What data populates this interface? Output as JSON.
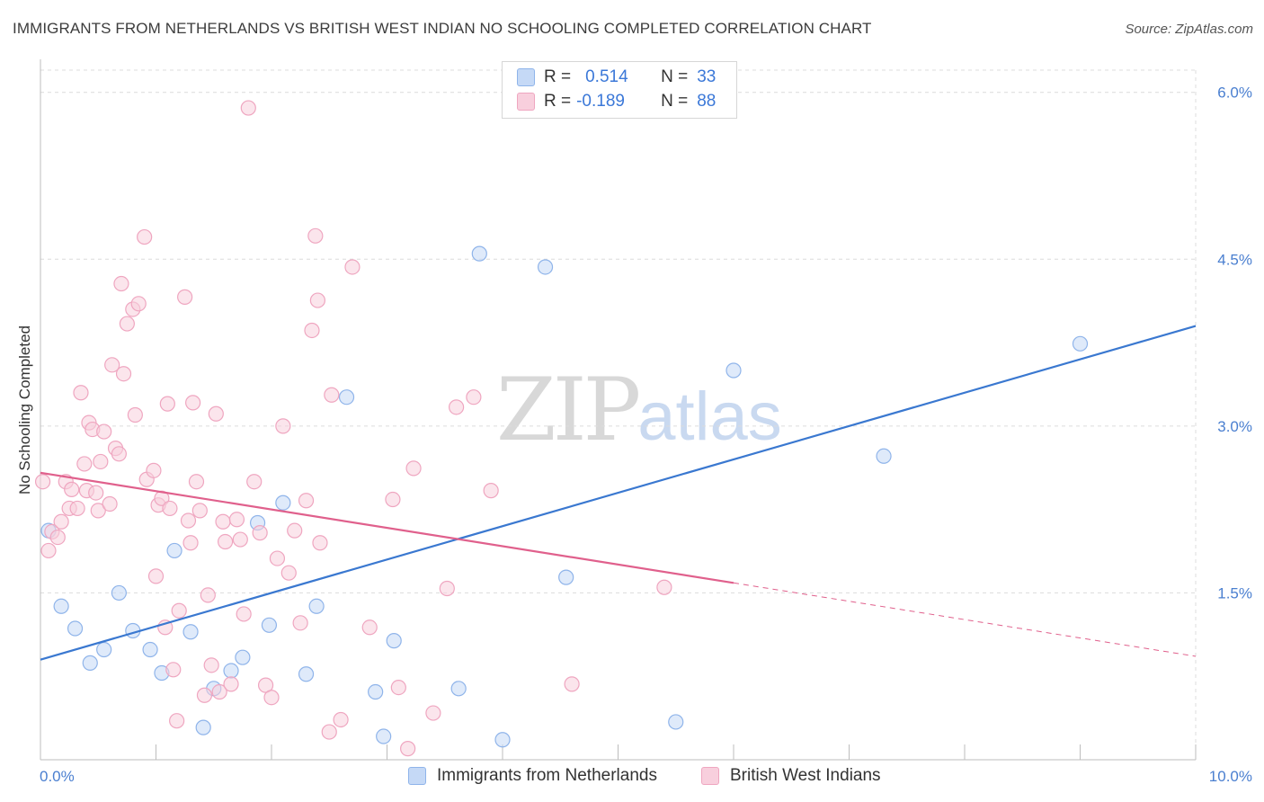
{
  "header": {
    "title": "IMMIGRANTS FROM NETHERLANDS VS BRITISH WEST INDIAN NO SCHOOLING COMPLETED CORRELATION CHART",
    "source": "Source: ZipAtlas.com"
  },
  "legend_top": {
    "rows": [
      {
        "r_label": "R =",
        "r_value": "0.514",
        "n_label": "N =",
        "n_value": "33"
      },
      {
        "r_label": "R =",
        "r_value": "-0.189",
        "n_label": "N =",
        "n_value": "88"
      }
    ]
  },
  "watermark": {
    "zip": "ZIP",
    "atlas": "atlas"
  },
  "chart_data": {
    "type": "scatter",
    "title": "IMMIGRANTS FROM NETHERLANDS VS BRITISH WEST INDIAN NO SCHOOLING COMPLETED CORRELATION CHART",
    "ylabel": "No Schooling Completed",
    "xlabel": "",
    "xlim": [
      0,
      10
    ],
    "ylim": [
      0,
      6.2
    ],
    "x_tick_labels": {
      "min": "0.0%",
      "max": "10.0%"
    },
    "y_ticks": [
      {
        "value": 1.5,
        "label": "1.5%"
      },
      {
        "value": 3.0,
        "label": "3.0%"
      },
      {
        "value": 4.5,
        "label": "4.5%"
      },
      {
        "value": 6.0,
        "label": "6.0%"
      }
    ],
    "grid": true,
    "legend_position": "bottom",
    "series": [
      {
        "name": "Immigrants from Netherlands",
        "color": "#8fb4ea",
        "fill": "#c5d9f6",
        "line_color": "#3a78d0",
        "trend": {
          "x0": 0.0,
          "y0": 0.9,
          "x1": 10.0,
          "y1": 3.9,
          "dashed_from": null
        },
        "points": [
          [
            0.07,
            2.06
          ],
          [
            0.18,
            1.38
          ],
          [
            0.3,
            1.18
          ],
          [
            0.43,
            0.87
          ],
          [
            0.55,
            0.99
          ],
          [
            0.68,
            1.5
          ],
          [
            0.8,
            1.16
          ],
          [
            0.95,
            0.99
          ],
          [
            1.05,
            0.78
          ],
          [
            1.16,
            1.88
          ],
          [
            1.3,
            1.15
          ],
          [
            1.41,
            0.29
          ],
          [
            1.5,
            0.64
          ],
          [
            1.65,
            0.8
          ],
          [
            1.75,
            0.92
          ],
          [
            1.88,
            2.13
          ],
          [
            1.98,
            1.21
          ],
          [
            2.1,
            2.31
          ],
          [
            2.3,
            0.77
          ],
          [
            2.39,
            1.38
          ],
          [
            2.65,
            3.26
          ],
          [
            2.9,
            0.61
          ],
          [
            2.97,
            0.21
          ],
          [
            3.06,
            1.07
          ],
          [
            3.62,
            0.64
          ],
          [
            3.8,
            4.55
          ],
          [
            4.0,
            0.18
          ],
          [
            4.37,
            4.43
          ],
          [
            4.55,
            1.64
          ],
          [
            5.5,
            0.34
          ],
          [
            6.0,
            3.5
          ],
          [
            7.3,
            2.73
          ],
          [
            9.0,
            3.74
          ]
        ]
      },
      {
        "name": "British West Indians",
        "color": "#efa6c0",
        "fill": "#f8cfdd",
        "line_color": "#e0608c",
        "trend": {
          "x0": 0.0,
          "y0": 2.58,
          "x1": 10.0,
          "y1": 0.93,
          "dashed_from": 6.0
        },
        "points": [
          [
            0.02,
            2.5
          ],
          [
            0.07,
            1.88
          ],
          [
            0.1,
            2.05
          ],
          [
            0.15,
            2.0
          ],
          [
            0.18,
            2.14
          ],
          [
            0.22,
            2.5
          ],
          [
            0.25,
            2.26
          ],
          [
            0.27,
            2.43
          ],
          [
            0.32,
            2.26
          ],
          [
            0.35,
            3.3
          ],
          [
            0.38,
            2.66
          ],
          [
            0.4,
            2.42
          ],
          [
            0.42,
            3.03
          ],
          [
            0.45,
            2.97
          ],
          [
            0.48,
            2.4
          ],
          [
            0.5,
            2.24
          ],
          [
            0.52,
            2.68
          ],
          [
            0.55,
            2.95
          ],
          [
            0.6,
            2.3
          ],
          [
            0.62,
            3.55
          ],
          [
            0.65,
            2.8
          ],
          [
            0.68,
            2.75
          ],
          [
            0.7,
            4.28
          ],
          [
            0.72,
            3.47
          ],
          [
            0.75,
            3.92
          ],
          [
            0.8,
            4.05
          ],
          [
            0.82,
            3.1
          ],
          [
            0.85,
            4.1
          ],
          [
            0.9,
            4.7
          ],
          [
            0.92,
            2.52
          ],
          [
            0.98,
            2.6
          ],
          [
            1.0,
            1.65
          ],
          [
            1.02,
            2.29
          ],
          [
            1.05,
            2.35
          ],
          [
            1.08,
            1.19
          ],
          [
            1.1,
            3.2
          ],
          [
            1.12,
            2.26
          ],
          [
            1.15,
            0.81
          ],
          [
            1.18,
            0.35
          ],
          [
            1.2,
            1.34
          ],
          [
            1.25,
            4.16
          ],
          [
            1.28,
            2.15
          ],
          [
            1.3,
            1.95
          ],
          [
            1.32,
            3.21
          ],
          [
            1.35,
            2.5
          ],
          [
            1.38,
            2.24
          ],
          [
            1.42,
            0.58
          ],
          [
            1.45,
            1.48
          ],
          [
            1.48,
            0.85
          ],
          [
            1.52,
            3.11
          ],
          [
            1.55,
            0.61
          ],
          [
            1.58,
            2.14
          ],
          [
            1.6,
            1.96
          ],
          [
            1.65,
            0.68
          ],
          [
            1.7,
            2.16
          ],
          [
            1.73,
            1.98
          ],
          [
            1.76,
            1.31
          ],
          [
            1.8,
            5.86
          ],
          [
            1.85,
            2.5
          ],
          [
            1.9,
            2.04
          ],
          [
            1.95,
            0.67
          ],
          [
            2.0,
            0.56
          ],
          [
            2.05,
            1.81
          ],
          [
            2.1,
            3.0
          ],
          [
            2.15,
            1.68
          ],
          [
            2.2,
            2.06
          ],
          [
            2.25,
            1.23
          ],
          [
            2.3,
            2.33
          ],
          [
            2.35,
            3.86
          ],
          [
            2.38,
            4.71
          ],
          [
            2.4,
            4.13
          ],
          [
            2.42,
            1.95
          ],
          [
            2.52,
            3.28
          ],
          [
            2.6,
            0.36
          ],
          [
            2.7,
            4.43
          ],
          [
            2.85,
            1.19
          ],
          [
            3.05,
            2.34
          ],
          [
            3.1,
            0.65
          ],
          [
            3.18,
            0.1
          ],
          [
            3.23,
            2.62
          ],
          [
            3.4,
            0.42
          ],
          [
            3.52,
            1.54
          ],
          [
            3.6,
            3.17
          ],
          [
            3.75,
            3.26
          ],
          [
            3.9,
            2.42
          ],
          [
            4.6,
            0.68
          ],
          [
            5.4,
            1.55
          ],
          [
            2.5,
            0.25
          ]
        ]
      }
    ]
  },
  "legend_bottom": {
    "items": [
      {
        "label": "Immigrants from Netherlands"
      },
      {
        "label": "British West Indians"
      }
    ]
  }
}
